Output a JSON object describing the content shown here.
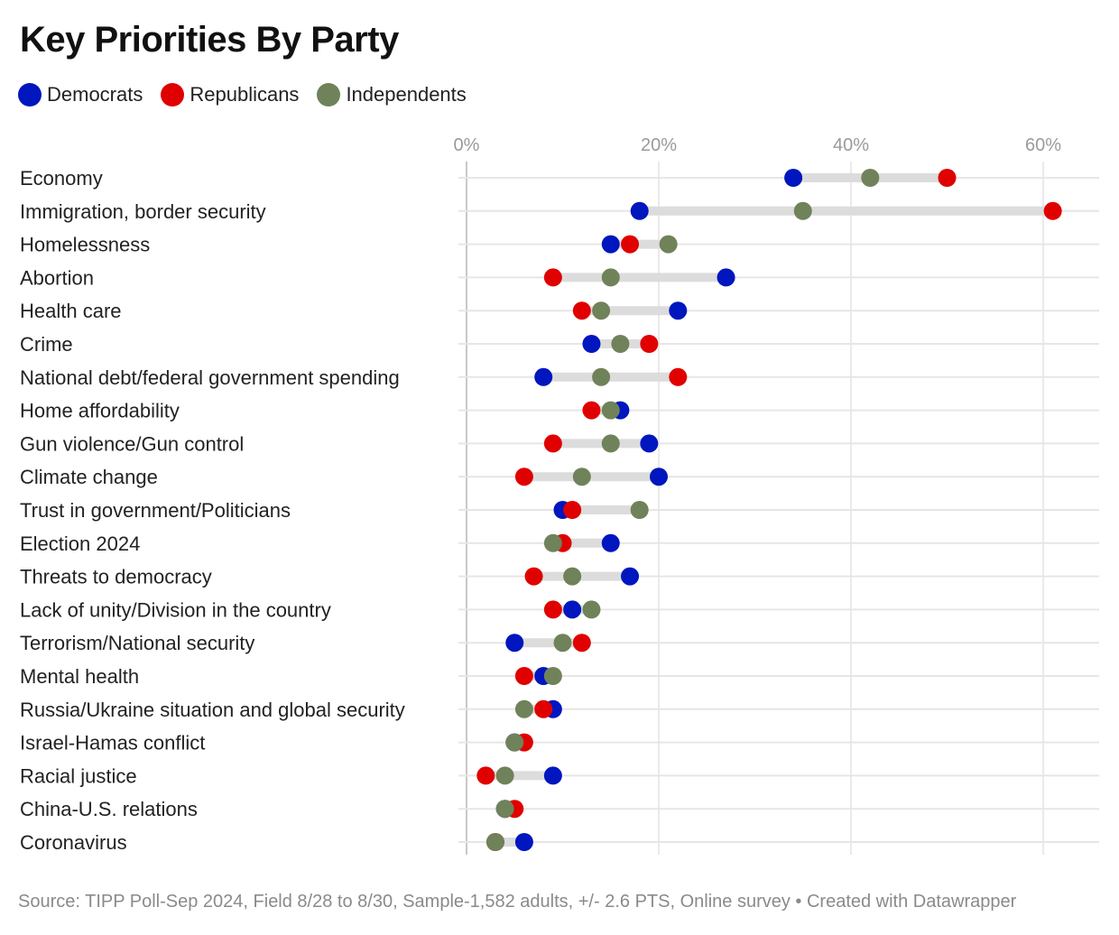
{
  "title": "Key Priorities By Party",
  "legend": [
    {
      "name": "Democrats",
      "color": "#0016bf"
    },
    {
      "name": "Republicans",
      "color": "#e00000"
    },
    {
      "name": "Independents",
      "color": "#70825a"
    }
  ],
  "footer": "Source: TIPP Poll-Sep 2024, Field 8/28 to 8/30, Sample-1,582 adults, +/- 2.6 PTS, Online survey • Created with Datawrapper",
  "chart_data": {
    "type": "dot-range",
    "title": "Key Priorities By Party",
    "xlabel": "",
    "ylabel": "",
    "x_ticks": [
      "0%",
      "20%",
      "40%",
      "60%"
    ],
    "x_tick_values": [
      0,
      20,
      40,
      60
    ],
    "xlim": [
      0,
      65
    ],
    "grid": true,
    "legend_position": "top-left",
    "categories": [
      "Economy",
      "Immigration, border security",
      "Homelessness",
      "Abortion",
      "Health care",
      "Crime",
      "National debt/federal government spending",
      "Home affordability",
      "Gun violence/Gun control",
      "Climate change",
      "Trust in government/Politicians",
      "Election 2024",
      "Threats to democracy",
      "Lack of unity/Division in the country",
      "Terrorism/National security",
      "Mental health",
      "Russia/Ukraine situation and global security",
      "Israel-Hamas conflict",
      "Racial justice",
      "China-U.S. relations",
      "Coronavirus"
    ],
    "series": [
      {
        "name": "Democrats",
        "color": "#0016bf",
        "values": [
          34,
          18,
          15,
          27,
          22,
          13,
          8,
          16,
          19,
          20,
          10,
          15,
          17,
          11,
          5,
          8,
          9,
          5,
          9,
          4,
          6
        ]
      },
      {
        "name": "Republicans",
        "color": "#e00000",
        "values": [
          50,
          61,
          17,
          9,
          12,
          19,
          22,
          13,
          9,
          6,
          11,
          10,
          7,
          9,
          12,
          6,
          8,
          6,
          2,
          5,
          3
        ]
      },
      {
        "name": "Independents",
        "color": "#70825a",
        "values": [
          42,
          35,
          21,
          15,
          14,
          16,
          14,
          15,
          15,
          12,
          18,
          9,
          11,
          13,
          10,
          9,
          6,
          5,
          4,
          4,
          3
        ]
      }
    ]
  }
}
